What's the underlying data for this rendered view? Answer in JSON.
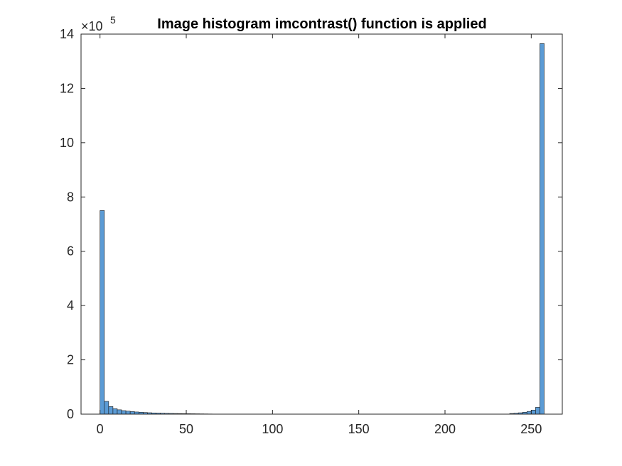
{
  "chart_data": {
    "type": "bar",
    "title": "Image histogram imcontrast() function is applied",
    "xlabel": "",
    "ylabel": "",
    "xlim": [
      -11,
      268
    ],
    "ylim": [
      0,
      1400000
    ],
    "exponent_label": "×10",
    "exponent_power": "5",
    "xticks": [
      "0",
      "50",
      "100",
      "150",
      "200",
      "250"
    ],
    "xtick_values": [
      0,
      50,
      100,
      150,
      200,
      250
    ],
    "yticks": [
      "0",
      "2",
      "4",
      "6",
      "8",
      "10",
      "12",
      "14"
    ],
    "ytick_values": [
      0,
      200000,
      400000,
      600000,
      800000,
      1000000,
      1200000,
      1400000
    ],
    "bin_width": 2.5,
    "bars": [
      {
        "x": 0,
        "value": 750000
      },
      {
        "x": 2.5,
        "value": 47000
      },
      {
        "x": 5,
        "value": 28000
      },
      {
        "x": 7.5,
        "value": 20000
      },
      {
        "x": 10,
        "value": 16000
      },
      {
        "x": 12.5,
        "value": 13000
      },
      {
        "x": 15,
        "value": 11000
      },
      {
        "x": 17.5,
        "value": 9500
      },
      {
        "x": 20,
        "value": 8000
      },
      {
        "x": 22.5,
        "value": 7000
      },
      {
        "x": 25,
        "value": 6000
      },
      {
        "x": 27.5,
        "value": 5200
      },
      {
        "x": 30,
        "value": 4500
      },
      {
        "x": 32.5,
        "value": 4000
      },
      {
        "x": 35,
        "value": 3500
      },
      {
        "x": 37.5,
        "value": 3000
      },
      {
        "x": 40,
        "value": 2700
      },
      {
        "x": 42.5,
        "value": 2400
      },
      {
        "x": 45,
        "value": 2100
      },
      {
        "x": 47.5,
        "value": 1900
      },
      {
        "x": 50,
        "value": 1700
      },
      {
        "x": 52.5,
        "value": 1500
      },
      {
        "x": 55,
        "value": 1300
      },
      {
        "x": 57.5,
        "value": 1100
      },
      {
        "x": 60,
        "value": 900
      },
      {
        "x": 62.5,
        "value": 700
      },
      {
        "x": 237.5,
        "value": 2500
      },
      {
        "x": 240,
        "value": 3500
      },
      {
        "x": 242.5,
        "value": 5000
      },
      {
        "x": 245,
        "value": 7000
      },
      {
        "x": 247.5,
        "value": 10000
      },
      {
        "x": 250,
        "value": 15000
      },
      {
        "x": 252.5,
        "value": 25000
      },
      {
        "x": 255,
        "value": 1365000
      }
    ],
    "bar_color": "#5B9BD5",
    "bar_edge_color": "#1a1a1a",
    "axis_color": "#262626",
    "grid": false,
    "legend": "none"
  }
}
